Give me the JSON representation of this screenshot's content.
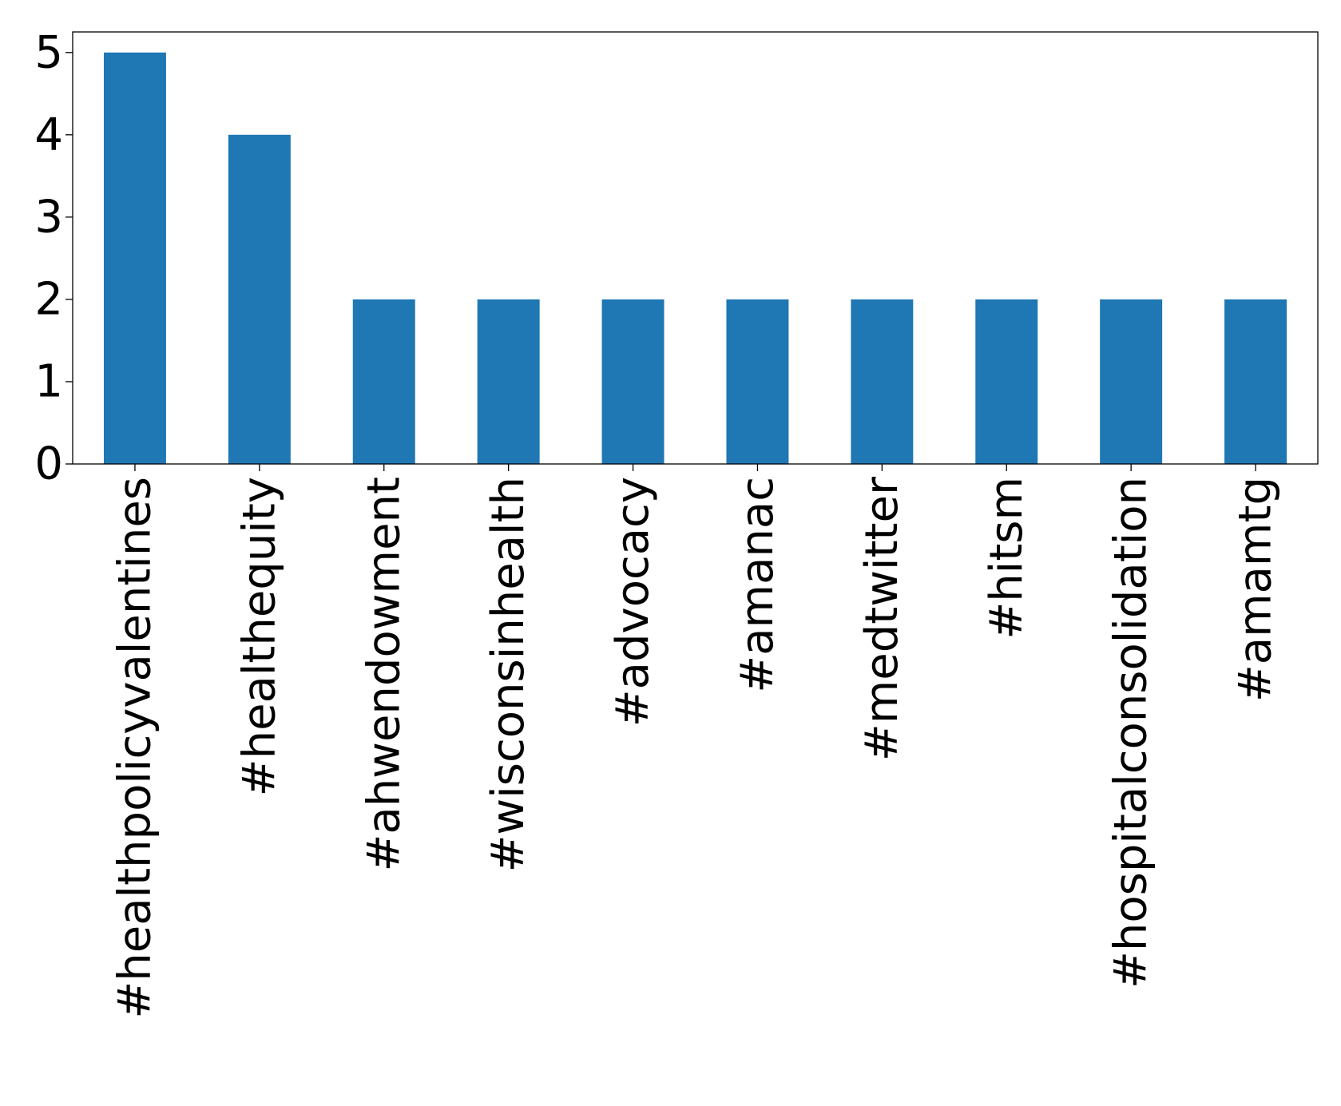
{
  "chart_data": {
    "type": "bar",
    "title": "",
    "xlabel": "",
    "ylabel": "",
    "categories": [
      "#healthpolicyvalentines",
      "#healthequity",
      "#ahwendowment",
      "#wisconsinhealth",
      "#advocacy",
      "#amanac",
      "#medtwitter",
      "#hitsm",
      "#hospitalconsolidation",
      "#amamtg"
    ],
    "values": [
      5,
      4,
      2,
      2,
      2,
      2,
      2,
      2,
      2,
      2
    ],
    "ylim": [
      0,
      5.25
    ],
    "yticks": [
      0,
      1,
      2,
      3,
      4,
      5
    ],
    "grid": false,
    "legend": "none",
    "bar_color": "#1f77b4"
  }
}
